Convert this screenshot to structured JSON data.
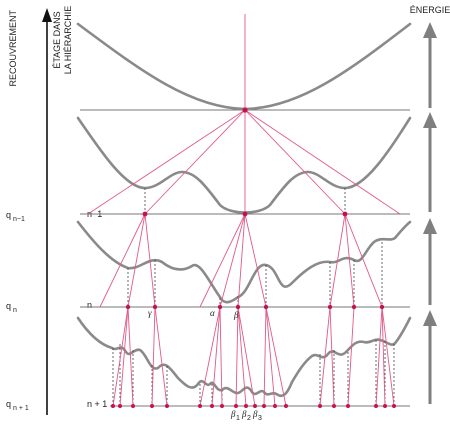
{
  "axes": {
    "left_title": "RECOUVREMENT",
    "middle_title_line1": "ÉTAGE DANS",
    "middle_title_line2": "LA HIÉRARCHIE",
    "right_title": "ÉNERGIE"
  },
  "left_labels": [
    "q",
    "q",
    "q"
  ],
  "left_label_subscripts": [
    "n−1",
    "n",
    "n + 1"
  ],
  "level_labels": [
    "n−1",
    "n",
    "n + 1"
  ],
  "greek_labels": {
    "gamma": "γ",
    "alpha": "α",
    "beta": "β",
    "beta1": "β",
    "beta2": "β",
    "beta3": "β",
    "sub1": "1",
    "sub2": "2",
    "sub3": "3"
  },
  "colors": {
    "curve": "#8a8a8a",
    "lines": "#e05a8a",
    "nodes": "#c8104a",
    "axis": "#111111",
    "arrows": "#7f7f7f",
    "hlines": "#777777"
  }
}
